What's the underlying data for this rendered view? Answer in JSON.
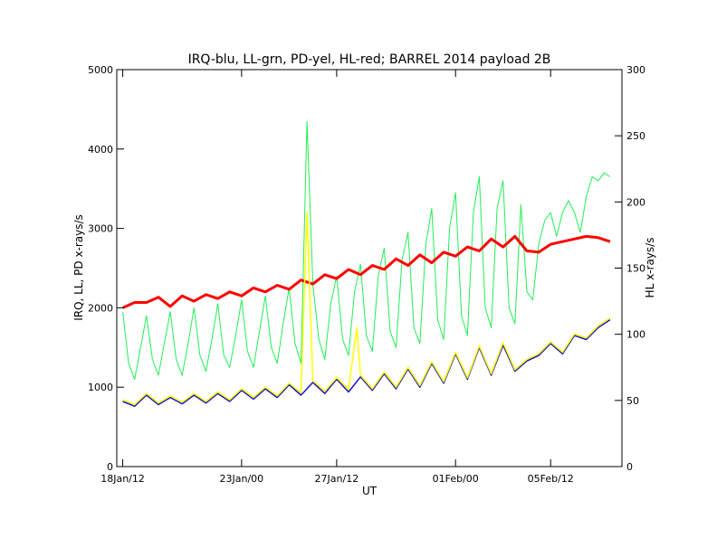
{
  "chart_data": {
    "type": "line",
    "title": "IRQ-blu, LL-grn, PD-yel, HL-red; BARREL 2014 payload 2B",
    "xlabel": "UT",
    "ylabel": "IRQ, LL, PD x-rays/s",
    "y2label": "HL x-rays/s",
    "xlim": [
      17.75,
      39.0
    ],
    "ylim": [
      0,
      5000
    ],
    "y2lim": [
      0,
      300
    ],
    "y_ticks": [
      0,
      1000,
      2000,
      3000,
      4000,
      5000
    ],
    "y2_ticks": [
      0,
      50,
      100,
      150,
      200,
      250,
      300
    ],
    "x_ticks": [
      {
        "x": 18,
        "label": "18Jan/12"
      },
      {
        "x": 23,
        "label": "23Jan/00"
      },
      {
        "x": 27,
        "label": "27Jan/12"
      },
      {
        "x": 32,
        "label": "01Feb/00"
      },
      {
        "x": 36,
        "label": "05Feb/12"
      }
    ],
    "grid": false,
    "colors": {
      "IRQ": "#1515c8",
      "LL": "#22ee55",
      "PD": "#ffff00",
      "HL": "#ff0000"
    },
    "series": [
      {
        "name": "LL",
        "axis": "left",
        "x": [
          18.0,
          18.25,
          18.5,
          18.75,
          19.0,
          19.25,
          19.5,
          19.75,
          20.0,
          20.25,
          20.5,
          20.75,
          21.0,
          21.25,
          21.5,
          21.75,
          22.0,
          22.25,
          22.5,
          22.75,
          23.0,
          23.25,
          23.5,
          23.75,
          24.0,
          24.25,
          24.5,
          24.75,
          25.0,
          25.25,
          25.5,
          25.75,
          26.0,
          26.25,
          26.5,
          26.75,
          27.0,
          27.25,
          27.5,
          27.75,
          28.0,
          28.25,
          28.5,
          28.75,
          29.0,
          29.25,
          29.5,
          29.75,
          30.0,
          30.25,
          30.5,
          30.75,
          31.0,
          31.25,
          31.5,
          31.75,
          32.0,
          32.25,
          32.5,
          32.75,
          33.0,
          33.25,
          33.5,
          33.75,
          34.0,
          34.25,
          34.5,
          34.75,
          35.0,
          35.25,
          35.5,
          35.75,
          36.0,
          36.25,
          36.5,
          36.75,
          37.0,
          37.25,
          37.5,
          37.75,
          38.0,
          38.25,
          38.5
        ],
        "values": [
          1950,
          1300,
          1100,
          1500,
          1900,
          1350,
          1150,
          1550,
          1950,
          1350,
          1150,
          1550,
          2000,
          1400,
          1200,
          1600,
          2050,
          1400,
          1250,
          1650,
          2100,
          1450,
          1250,
          1700,
          2150,
          1500,
          1300,
          1800,
          2250,
          1550,
          1300,
          4350,
          2300,
          1600,
          1350,
          2050,
          2400,
          1600,
          1400,
          2200,
          2550,
          1650,
          1450,
          2400,
          2750,
          1700,
          1500,
          2600,
          2950,
          1750,
          1550,
          2800,
          3250,
          1850,
          1600,
          3000,
          3450,
          1900,
          1650,
          3200,
          3650,
          2000,
          1750,
          3250,
          3600,
          2000,
          1800,
          3300,
          2200,
          2100,
          2800,
          3100,
          3200,
          2900,
          3200,
          3350,
          3200,
          2950,
          3400,
          3650,
          3600,
          3700,
          3650
        ]
      },
      {
        "name": "HL",
        "axis": "right",
        "x": [
          18.0,
          18.5,
          19.0,
          19.5,
          20.0,
          20.5,
          21.0,
          21.5,
          22.0,
          22.5,
          23.0,
          23.5,
          24.0,
          24.5,
          25.0,
          25.5,
          26.0,
          26.5,
          27.0,
          27.5,
          28.0,
          28.5,
          29.0,
          29.5,
          30.0,
          30.5,
          31.0,
          31.5,
          32.0,
          32.5,
          33.0,
          33.5,
          34.0,
          34.5,
          35.0,
          35.5,
          36.0,
          36.5,
          37.0,
          37.5,
          38.0,
          38.5
        ],
        "values": [
          120,
          124,
          124,
          128,
          121,
          129,
          125,
          130,
          127,
          132,
          129,
          135,
          132,
          137,
          134,
          141,
          138,
          145,
          142,
          149,
          145,
          152,
          149,
          157,
          152,
          160,
          154,
          162,
          159,
          166,
          163,
          172,
          166,
          174,
          163,
          162,
          168,
          170,
          172,
          174,
          173,
          170
        ]
      },
      {
        "name": "IRQ",
        "axis": "left",
        "x": [
          18.0,
          18.5,
          19.0,
          19.5,
          20.0,
          20.5,
          21.0,
          21.5,
          22.0,
          22.5,
          23.0,
          23.5,
          24.0,
          24.5,
          25.0,
          25.5,
          26.0,
          26.5,
          27.0,
          27.5,
          28.0,
          28.5,
          29.0,
          29.5,
          30.0,
          30.5,
          31.0,
          31.5,
          32.0,
          32.5,
          33.0,
          33.5,
          34.0,
          34.5,
          35.0,
          35.5,
          36.0,
          36.5,
          37.0,
          37.5,
          38.0,
          38.5
        ],
        "values": [
          820,
          760,
          900,
          780,
          870,
          790,
          900,
          800,
          920,
          820,
          960,
          850,
          980,
          870,
          1030,
          900,
          1060,
          920,
          1100,
          940,
          1130,
          960,
          1170,
          980,
          1230,
          1000,
          1300,
          1050,
          1420,
          1100,
          1500,
          1150,
          1530,
          1200,
          1330,
          1400,
          1550,
          1420,
          1650,
          1600,
          1750,
          1850
        ]
      },
      {
        "name": "PD",
        "axis": "left",
        "x": [
          18.0,
          18.5,
          19.0,
          19.5,
          20.0,
          20.5,
          21.0,
          21.5,
          22.0,
          22.5,
          23.0,
          23.5,
          24.0,
          24.5,
          25.0,
          25.5,
          25.75,
          26.0,
          26.5,
          27.0,
          27.5,
          27.85,
          28.0,
          28.5,
          29.0,
          29.5,
          30.0,
          30.5,
          31.0,
          31.5,
          32.0,
          32.5,
          33.0,
          33.5,
          34.0,
          34.5,
          35.0,
          35.5,
          36.0,
          36.5,
          37.0,
          37.5,
          38.0,
          38.5
        ],
        "values": [
          840,
          780,
          920,
          800,
          890,
          810,
          920,
          820,
          940,
          840,
          980,
          870,
          1000,
          890,
          1050,
          930,
          3200,
          1080,
          950,
          1120,
          970,
          1750,
          1150,
          980,
          1190,
          1000,
          1250,
          1020,
          1320,
          1070,
          1440,
          1120,
          1520,
          1170,
          1560,
          1220,
          1350,
          1420,
          1570,
          1440,
          1670,
          1620,
          1770,
          1870
        ]
      }
    ]
  }
}
